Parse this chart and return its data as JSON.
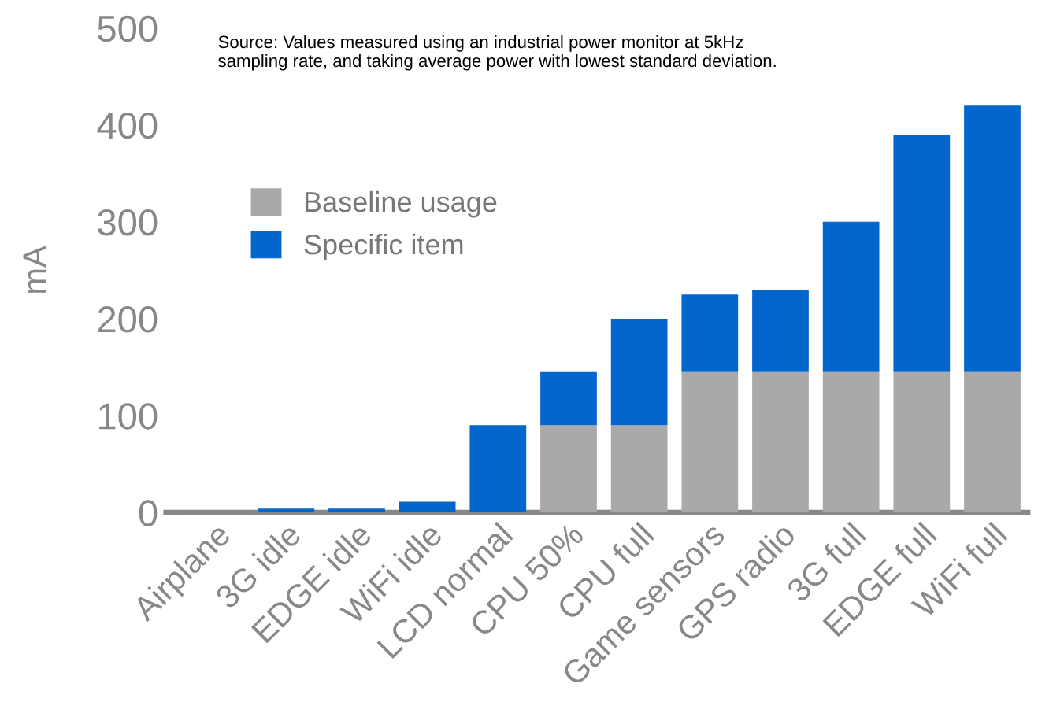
{
  "chart_data": {
    "type": "bar",
    "stacked": true,
    "ylabel": "mA",
    "categories": [
      "Airplane",
      "3G idle",
      "EDGE idle",
      "WiFi idle",
      "LCD normal",
      "CPU 50%",
      "CPU full",
      "Game sensors",
      "GPS radio",
      "3G full",
      "EDGE full",
      "WiFi full"
    ],
    "series": [
      {
        "name": "Baseline usage",
        "color": "#a9a9a9",
        "values": [
          0,
          0,
          0,
          0,
          0,
          90,
          90,
          145,
          145,
          145,
          145,
          145
        ]
      },
      {
        "name": "Specific item",
        "color": "#0366cc",
        "values": [
          1,
          4,
          4,
          11,
          90,
          55,
          110,
          80,
          85,
          155,
          245,
          275
        ]
      }
    ],
    "ylim": [
      0,
      500
    ],
    "yticks": [
      0,
      100,
      200,
      300,
      400,
      500
    ],
    "grid": false,
    "legend": "top left",
    "annotations": [
      "Source: Values measured using an industrial power monitor at 5kHz sampling rate, and taking average power with lowest standard deviation."
    ]
  }
}
